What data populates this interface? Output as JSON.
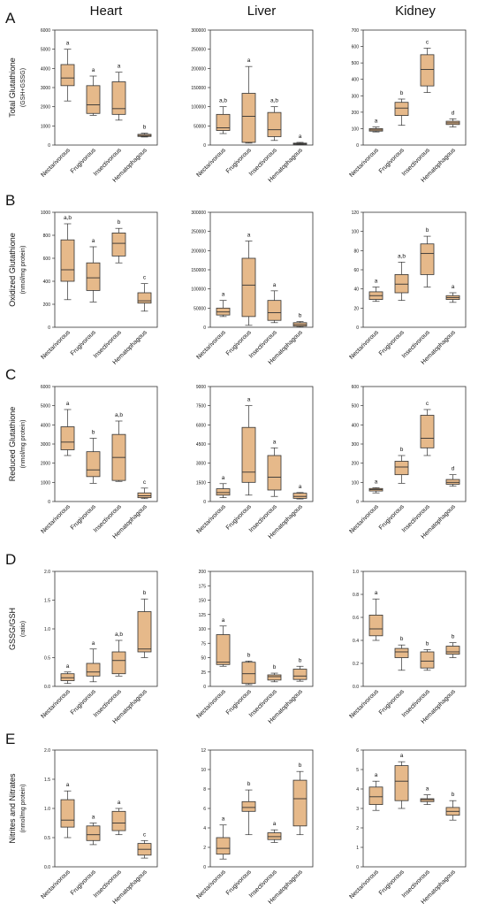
{
  "figure": {
    "col_titles": [
      "Heart",
      "Liver",
      "Kidney"
    ],
    "categories": [
      "Nectarivorous",
      "Frugivorous",
      "Insectivorous",
      "Hematophagous"
    ],
    "colors": {
      "box": "#e6b98a",
      "stroke": "#333333",
      "text": "#111111"
    }
  },
  "chart_data": [
    {
      "type": "box",
      "panel": "A",
      "tissue": "Heart",
      "ylabel": [
        "Total Glutathione",
        "(GSH+GSSG)"
      ],
      "ylim": [
        0,
        6000
      ],
      "yticks": [
        0,
        1000,
        2000,
        3000,
        4000,
        5000,
        6000
      ],
      "categories": [
        "Nectarivorous",
        "Frugivorous",
        "Insectivorous",
        "Hematophagous"
      ],
      "boxes": [
        [
          2300,
          3100,
          3500,
          4200,
          5000
        ],
        [
          1550,
          1650,
          2100,
          3100,
          3600
        ],
        [
          1300,
          1600,
          1900,
          3300,
          3800
        ],
        [
          420,
          450,
          500,
          560,
          620
        ]
      ],
      "letters": [
        "a",
        "a",
        "a",
        "b"
      ]
    },
    {
      "type": "box",
      "panel": "A",
      "tissue": "Liver",
      "ylabel": [],
      "ylim": [
        0,
        300000
      ],
      "yticks": [
        0,
        50000,
        100000,
        150000,
        200000,
        250000,
        300000
      ],
      "categories": [
        "Nectarivorous",
        "Frugivorous",
        "Insectivorous",
        "Hematophagous"
      ],
      "boxes": [
        [
          30000,
          38000,
          45000,
          80000,
          100000
        ],
        [
          5000,
          7000,
          75000,
          135000,
          205000
        ],
        [
          12000,
          22000,
          40000,
          85000,
          100000
        ],
        [
          1000,
          2000,
          3500,
          5000,
          7000
        ]
      ],
      "letters": [
        "a,b",
        "a",
        "a,b",
        "a"
      ]
    },
    {
      "type": "box",
      "panel": "A",
      "tissue": "Kidney",
      "ylabel": [],
      "ylim": [
        0,
        700
      ],
      "yticks": [
        0,
        100,
        200,
        300,
        400,
        500,
        600,
        700
      ],
      "categories": [
        "Nectarivorous",
        "Frugivorous",
        "Insectivorous",
        "Hematophagous"
      ],
      "boxes": [
        [
          80,
          85,
          92,
          100,
          110
        ],
        [
          120,
          180,
          225,
          260,
          280
        ],
        [
          320,
          360,
          460,
          550,
          590
        ],
        [
          110,
          125,
          135,
          145,
          160
        ]
      ],
      "letters": [
        "a",
        "b",
        "c",
        "d"
      ]
    },
    {
      "type": "box",
      "panel": "B",
      "tissue": "Heart",
      "ylabel": [
        "Oxidized Glutathione",
        "(nmol/mg protein)"
      ],
      "ylim": [
        0,
        1000
      ],
      "yticks": [
        0,
        200,
        400,
        600,
        800,
        1000
      ],
      "categories": [
        "Nectarivorous",
        "Frugivorous",
        "Insectivorous",
        "Hematophagous"
      ],
      "boxes": [
        [
          240,
          400,
          500,
          760,
          900
        ],
        [
          220,
          320,
          430,
          560,
          700
        ],
        [
          560,
          620,
          730,
          820,
          860
        ],
        [
          140,
          210,
          230,
          300,
          380
        ]
      ],
      "letters": [
        "a,b",
        "a",
        "b",
        "c"
      ]
    },
    {
      "type": "box",
      "panel": "B",
      "tissue": "Liver",
      "ylabel": [],
      "ylim": [
        0,
        300000
      ],
      "yticks": [
        0,
        50000,
        100000,
        150000,
        200000,
        250000,
        300000
      ],
      "categories": [
        "Nectarivorous",
        "Frugivorous",
        "Insectivorous",
        "Hematophagous"
      ],
      "boxes": [
        [
          28000,
          32000,
          40000,
          50000,
          70000
        ],
        [
          5000,
          28000,
          110000,
          180000,
          225000
        ],
        [
          12000,
          18000,
          38000,
          70000,
          95000
        ],
        [
          1000,
          3000,
          7000,
          12000,
          15000
        ]
      ],
      "letters": [
        "a",
        "a",
        "a",
        "b"
      ]
    },
    {
      "type": "box",
      "panel": "B",
      "tissue": "Kidney",
      "ylabel": [],
      "ylim": [
        0,
        120
      ],
      "yticks": [
        0,
        20,
        40,
        60,
        80,
        100,
        120
      ],
      "categories": [
        "Nectarivorous",
        "Frugivorous",
        "Insectivorous",
        "Hematophagous"
      ],
      "boxes": [
        [
          27,
          29,
          33,
          37,
          42
        ],
        [
          28,
          36,
          45,
          55,
          68
        ],
        [
          42,
          55,
          77,
          87,
          95
        ],
        [
          26,
          29,
          31,
          33,
          36
        ]
      ],
      "letters": [
        "a",
        "a,b",
        "b",
        "a"
      ]
    },
    {
      "type": "box",
      "panel": "C",
      "tissue": "Heart",
      "ylabel": [
        "Reduced Glutathione",
        "(nmol/mg protein)"
      ],
      "ylim": [
        0,
        6000
      ],
      "yticks": [
        0,
        1000,
        2000,
        3000,
        4000,
        5000,
        6000
      ],
      "categories": [
        "Nectarivorous",
        "Frugivorous",
        "Insectivorous",
        "Hematophagous"
      ],
      "boxes": [
        [
          2400,
          2700,
          3100,
          3900,
          4800
        ],
        [
          950,
          1300,
          1650,
          2600,
          3300
        ],
        [
          1050,
          1100,
          2300,
          3500,
          4200
        ],
        [
          150,
          200,
          300,
          450,
          700
        ]
      ],
      "letters": [
        "a",
        "b",
        "a,b",
        "c"
      ]
    },
    {
      "type": "box",
      "panel": "C",
      "tissue": "Liver",
      "ylabel": [],
      "ylim": [
        0,
        9000
      ],
      "yticks": [
        0,
        1500,
        3000,
        4500,
        6000,
        7500,
        9000
      ],
      "categories": [
        "Nectarivorous",
        "Frugivorous",
        "Insectivorous",
        "Hematophagous"
      ],
      "boxes": [
        [
          300,
          500,
          700,
          1000,
          1400
        ],
        [
          500,
          1500,
          2300,
          5800,
          7500
        ],
        [
          400,
          900,
          1900,
          3600,
          4200
        ],
        [
          200,
          250,
          400,
          650,
          700
        ]
      ],
      "letters": [
        "a",
        "a",
        "a",
        "a"
      ]
    },
    {
      "type": "box",
      "panel": "C",
      "tissue": "Kidney",
      "ylabel": [],
      "ylim": [
        0,
        600
      ],
      "yticks": [
        0,
        100,
        200,
        300,
        400,
        500,
        600
      ],
      "categories": [
        "Nectarivorous",
        "Frugivorous",
        "Insectivorous",
        "Hematophagous"
      ],
      "boxes": [
        [
          45,
          55,
          62,
          68,
          72
        ],
        [
          95,
          140,
          180,
          210,
          240
        ],
        [
          240,
          280,
          330,
          450,
          480
        ],
        [
          80,
          90,
          100,
          115,
          140
        ]
      ],
      "letters": [
        "a",
        "b",
        "c",
        "d"
      ]
    },
    {
      "type": "box",
      "panel": "D",
      "tissue": "Heart",
      "ylabel": [
        "GSSG/GSH",
        "(ratio)"
      ],
      "ylim": [
        0,
        2.0
      ],
      "yticks": [
        0.0,
        0.5,
        1.0,
        1.5,
        2.0
      ],
      "tick_decimals": 1,
      "categories": [
        "Nectarivorous",
        "Frugivorous",
        "Insectivorous",
        "Hematophagous"
      ],
      "boxes": [
        [
          0.05,
          0.1,
          0.15,
          0.22,
          0.25
        ],
        [
          0.08,
          0.18,
          0.25,
          0.4,
          0.65
        ],
        [
          0.18,
          0.22,
          0.45,
          0.6,
          0.8
        ],
        [
          0.5,
          0.6,
          0.65,
          1.3,
          1.52
        ]
      ],
      "letters": [
        "a",
        "a",
        "a,b",
        "b"
      ]
    },
    {
      "type": "box",
      "panel": "D",
      "tissue": "Liver",
      "ylabel": [],
      "ylim": [
        0,
        200
      ],
      "yticks": [
        0,
        25,
        50,
        75,
        100,
        125,
        150,
        175,
        200
      ],
      "categories": [
        "Nectarivorous",
        "Frugivorous",
        "Insectivorous",
        "Hematophagous"
      ],
      "boxes": [
        [
          35,
          38,
          42,
          90,
          105
        ],
        [
          3,
          5,
          22,
          42,
          44
        ],
        [
          8,
          11,
          17,
          20,
          23
        ],
        [
          9,
          12,
          18,
          30,
          35
        ]
      ],
      "letters": [
        "a",
        "b",
        "b",
        "b"
      ]
    },
    {
      "type": "box",
      "panel": "D",
      "tissue": "Kidney",
      "ylabel": [],
      "ylim": [
        0,
        1.0
      ],
      "yticks": [
        0.0,
        0.2,
        0.4,
        0.6,
        0.8,
        1.0
      ],
      "tick_decimals": 1,
      "categories": [
        "Nectarivorous",
        "Frugivorous",
        "Insectivorous",
        "Hematophagous"
      ],
      "boxes": [
        [
          0.4,
          0.44,
          0.5,
          0.62,
          0.76
        ],
        [
          0.14,
          0.25,
          0.3,
          0.33,
          0.36
        ],
        [
          0.14,
          0.16,
          0.22,
          0.3,
          0.32
        ],
        [
          0.25,
          0.28,
          0.3,
          0.35,
          0.38
        ]
      ],
      "letters": [
        "a",
        "b",
        "b",
        "b"
      ]
    },
    {
      "type": "box",
      "panel": "E",
      "tissue": "Heart",
      "ylabel": [
        "Nitrites and Nitrates",
        "(nmol/mg protein)"
      ],
      "ylim": [
        0,
        2.0
      ],
      "yticks": [
        0.0,
        0.5,
        1.0,
        1.5,
        2.0
      ],
      "tick_decimals": 1,
      "categories": [
        "Nectarivorous",
        "Frugivorous",
        "Insectivorous",
        "Hematophagous"
      ],
      "boxes": [
        [
          0.5,
          0.68,
          0.8,
          1.15,
          1.3
        ],
        [
          0.38,
          0.45,
          0.55,
          0.7,
          0.75
        ],
        [
          0.55,
          0.62,
          0.75,
          0.95,
          1.0
        ],
        [
          0.15,
          0.2,
          0.3,
          0.4,
          0.45
        ]
      ],
      "letters": [
        "a",
        "a",
        "a",
        "c"
      ]
    },
    {
      "type": "box",
      "panel": "E",
      "tissue": "Liver",
      "ylabel": [],
      "ylim": [
        0,
        12
      ],
      "yticks": [
        0,
        2,
        4,
        6,
        8,
        10,
        12
      ],
      "categories": [
        "Nectarivorous",
        "Frugivorous",
        "Insectivorous",
        "Hematophagous"
      ],
      "boxes": [
        [
          0.8,
          1.3,
          1.9,
          3.0,
          4.3
        ],
        [
          3.3,
          5.7,
          6.1,
          6.7,
          7.9
        ],
        [
          2.5,
          2.8,
          3.1,
          3.5,
          3.8
        ],
        [
          3.3,
          4.2,
          7.0,
          8.9,
          9.8
        ]
      ],
      "letters": [
        "a",
        "b",
        "a",
        "b"
      ]
    },
    {
      "type": "box",
      "panel": "E",
      "tissue": "Kidney",
      "ylabel": [],
      "ylim": [
        0,
        6
      ],
      "yticks": [
        0,
        1,
        2,
        3,
        4,
        5,
        6
      ],
      "categories": [
        "Nectarivorous",
        "Frugivorous",
        "Insectivorous",
        "Hematophagous"
      ],
      "boxes": [
        [
          2.9,
          3.2,
          3.6,
          4.1,
          4.4
        ],
        [
          3.0,
          3.4,
          4.4,
          5.2,
          5.4
        ],
        [
          3.2,
          3.35,
          3.45,
          3.5,
          3.7
        ],
        [
          2.4,
          2.65,
          2.85,
          3.05,
          3.4
        ]
      ],
      "letters": [
        "a",
        "a",
        "a",
        "b"
      ]
    }
  ]
}
